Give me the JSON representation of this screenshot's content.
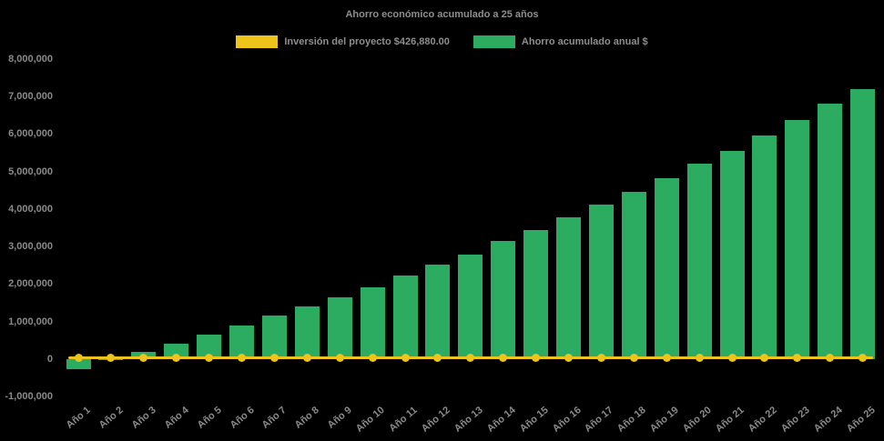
{
  "title": "Ahorro económico acumulado a 25 años",
  "legend": {
    "items": [
      {
        "label": "Inversión del proyecto $426,880.00",
        "color": "#EDC31C",
        "type": "line"
      },
      {
        "label": "Ahorro acumulado anual $",
        "color": "#2BAC61",
        "type": "bar"
      }
    ],
    "position": "top"
  },
  "colors": {
    "background": "#000000",
    "text": "#8a8a8a",
    "bar_green": "#2BAC61",
    "line_yellow": "#EDC31C"
  },
  "chart_data": {
    "type": "bar",
    "title": "Ahorro económico acumulado a 25 años",
    "xlabel": "",
    "ylabel": "",
    "categories": [
      "Año 1",
      "Año 2",
      "Año 3",
      "Año 4",
      "Año 5",
      "Año 6",
      "Año 7",
      "Año 8",
      "Año 9",
      "Año 10",
      "Año 11",
      "Año 12",
      "Año 13",
      "Año 14",
      "Año 15",
      "Año 16",
      "Año 17",
      "Año 18",
      "Año 19",
      "Año 20",
      "Año 21",
      "Año 22",
      "Año 23",
      "Año 24",
      "Año 25"
    ],
    "series": [
      {
        "name": "Ahorro acumulado anual $",
        "type": "bar",
        "color": "#2BAC61",
        "values": [
          -280000,
          -10000,
          200000,
          410000,
          650000,
          900000,
          1160000,
          1410000,
          1650000,
          1920000,
          2220000,
          2520000,
          2790000,
          3140000,
          3450000,
          3780000,
          4130000,
          4450000,
          4830000,
          5220000,
          5560000,
          5960000,
          6370000,
          6800000,
          7200000
        ]
      },
      {
        "name": "Inversión del proyecto $426,880.00",
        "type": "line",
        "color": "#EDC31C",
        "marker": "circle",
        "values": [
          0,
          0,
          0,
          0,
          0,
          0,
          0,
          0,
          0,
          0,
          0,
          0,
          0,
          0,
          0,
          0,
          0,
          0,
          0,
          0,
          0,
          0,
          0,
          0,
          0
        ]
      }
    ],
    "ylim": [
      -1000000,
      8000000
    ],
    "y_ticks": [
      8000000,
      7000000,
      6000000,
      5000000,
      4000000,
      3000000,
      2000000,
      1000000,
      0,
      -1000000
    ],
    "grid": false,
    "legend_position": "top",
    "background": "#000000"
  }
}
